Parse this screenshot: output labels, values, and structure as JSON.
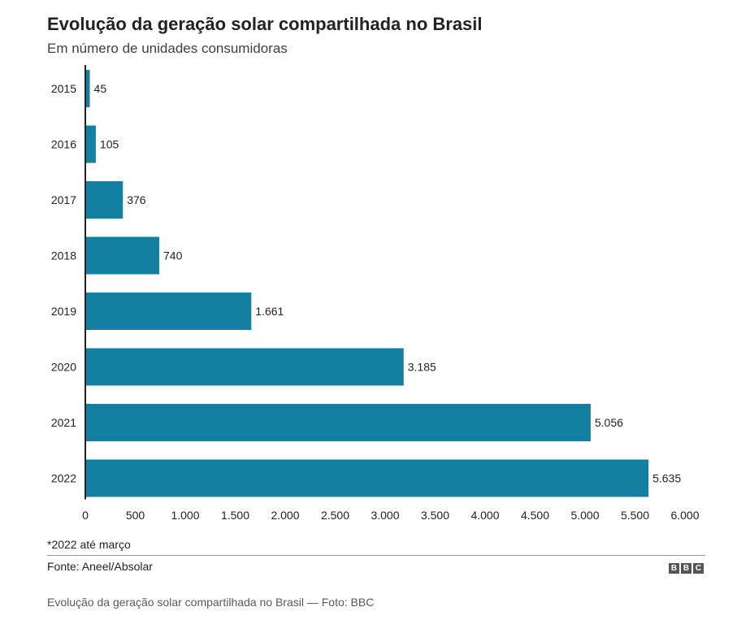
{
  "chart_data": {
    "type": "bar",
    "orientation": "horizontal",
    "title": "Evolução da geração solar compartilhada no Brasil",
    "subtitle": "Em número de unidades consumidoras",
    "categories": [
      "2015",
      "2016",
      "2017",
      "2018",
      "2019",
      "2020",
      "2021",
      "2022"
    ],
    "values": [
      45,
      105,
      376,
      740,
      1661,
      3185,
      5056,
      5635
    ],
    "value_labels": [
      "45",
      "105",
      "376",
      "740",
      "1.661",
      "3.185",
      "5.056",
      "5.635"
    ],
    "xlim": [
      0,
      6000
    ],
    "xticks": [
      0,
      500,
      1000,
      1500,
      2000,
      2500,
      3000,
      3500,
      4000,
      4500,
      5000,
      5500,
      6000
    ],
    "xtick_labels": [
      "0",
      "500",
      "1.000",
      "1.500",
      "2.000",
      "2.500",
      "3.000",
      "3.500",
      "4.000",
      "4.500",
      "5.000",
      "5.500",
      "6.000"
    ],
    "grid": false,
    "bar_color": "#1380A1"
  },
  "footer": {
    "note": "*2022 até março",
    "source": "Fonte: Aneel/Absolar",
    "logo_letters": [
      "B",
      "B",
      "C"
    ]
  },
  "caption": "Evolução da geração solar compartilhada no Brasil — Foto: BBC"
}
